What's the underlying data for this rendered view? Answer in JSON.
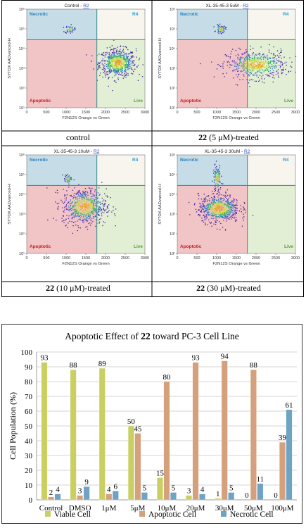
{
  "panels": [
    {
      "title": "Control - ",
      "title_link": "R2",
      "caption_bold": "",
      "caption": "control"
    },
    {
      "title": "XL-35-45-3 5uM - ",
      "title_link": "R2",
      "caption_bold": "22",
      "caption": " (5 μM)-treated"
    },
    {
      "title": "XL-35-45-3 10uM - ",
      "title_link": "R2",
      "caption_bold": "22",
      "caption": " (10 μM)-treated"
    },
    {
      "title": "XL-35-45-3 30uM - ",
      "title_link": "R2",
      "caption_bold": "22",
      "caption": " (30 μM)-treated"
    }
  ],
  "flow": {
    "xlabel": "F2N12S Orange vs Green",
    "ylabel": "SYTOX AADvanced-H",
    "x_ticks": [
      "0",
      "500",
      "1000",
      "1500",
      "2000",
      "2500",
      "3000"
    ],
    "y_ticks": [
      "10¹",
      "10²",
      "10³",
      "10⁴",
      "10⁵",
      "10⁶"
    ],
    "quadrants": {
      "necrotic": "Necrotic",
      "r4": "R4",
      "apoptotic": "Apoptotic",
      "live": "Live"
    },
    "colors": {
      "necrotic": "#c6dde8",
      "r4": "#f8f5ee",
      "apoptotic": "#f1c4c6",
      "live": "#e2efd4",
      "gate": "#2e8b8b"
    }
  },
  "chart_data": {
    "type": "bar",
    "title_pre": "Apoptotic Effect of ",
    "title_bold": "22",
    "title_post": " toward PC-3 Cell Line",
    "ylabel": "Cell Population (%)",
    "ylim": [
      0,
      100
    ],
    "y_ticks": [
      0,
      10,
      20,
      30,
      40,
      50,
      60,
      70,
      80,
      90,
      100
    ],
    "categories": [
      "Control",
      "DMSO",
      "1μM",
      "5μM",
      "10μM",
      "20μM",
      "30μM",
      "50μM",
      "100μM"
    ],
    "series": [
      {
        "name": "Viable Cell",
        "color": "#c9cf63",
        "values": [
          93,
          88,
          89,
          50,
          15,
          3,
          1,
          0,
          0
        ]
      },
      {
        "name": "Apoptotic Cell",
        "color": "#d4a17c",
        "values": [
          2,
          3,
          4,
          45,
          80,
          93,
          94,
          88,
          39
        ]
      },
      {
        "name": "Necrotic Cell",
        "color": "#6ea3c4",
        "values": [
          4,
          9,
          6,
          5,
          5,
          4,
          5,
          11,
          61
        ]
      }
    ],
    "data_labels": [
      [
        "93",
        "2",
        "4"
      ],
      [
        "88",
        "3",
        "9"
      ],
      [
        "89",
        "4",
        "6"
      ],
      [
        "50",
        "45",
        "5"
      ],
      [
        "15",
        "80",
        "5"
      ],
      [
        "3",
        "93",
        "4"
      ],
      [
        "1",
        "94",
        "5"
      ],
      [
        "0",
        "88",
        "11"
      ],
      [
        "0",
        "39",
        "61"
      ]
    ],
    "grid": true,
    "legend_position": "bottom"
  }
}
